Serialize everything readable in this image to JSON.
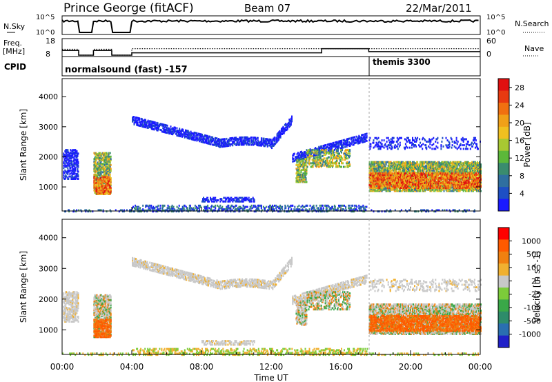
{
  "header": {
    "station": "Prince George (fitACF)",
    "beam": "Beam 07",
    "date": "22/Mar/2011"
  },
  "summary": {
    "nsky_label": "N.Sky",
    "nsky_ticks": [
      "10^5",
      "10^0"
    ],
    "nsearch_label": "N.Search",
    "nsearch_ticks": [
      "10^5",
      "10^0"
    ],
    "freq_label": "Freq.",
    "freq_unit": "[MHz]",
    "freq_ticks": [
      18,
      8
    ],
    "nave_label": "Nave",
    "nave_ticks": [
      60,
      0
    ],
    "cpid_label": "CPID",
    "cpid_segments": [
      {
        "name": "normalsound (fast) -157",
        "start_hour": 0
      },
      {
        "name": "themis 3300",
        "start_hour": 17.6
      }
    ]
  },
  "chart_data": [
    {
      "type": "heatmap",
      "name": "power-panel",
      "ylabel": "Slant Range [km]",
      "ylim": [
        200,
        4600
      ],
      "yticks": [
        1000,
        2000,
        3000,
        4000
      ],
      "xlabel": "",
      "xlim_hours": [
        0,
        24
      ],
      "colorbar": {
        "label": "Power [dB]",
        "ticks": [
          4,
          8,
          12,
          16,
          20,
          24,
          28
        ],
        "range": [
          0,
          30
        ],
        "colors": [
          "#1a1aff",
          "#1e4fc4",
          "#2f6fa0",
          "#3a8c6e",
          "#5cb83a",
          "#a8c832",
          "#f0c020",
          "#f0a018",
          "#f07010",
          "#e83a10",
          "#e01010"
        ]
      }
    },
    {
      "type": "heatmap",
      "name": "velocity-panel",
      "ylabel": "Slant Range [km]",
      "ylim": [
        200,
        4600
      ],
      "yticks": [
        1000,
        2000,
        3000,
        4000
      ],
      "xlabel": "Time UT",
      "xlim_hours": [
        0,
        24
      ],
      "xticks": [
        "00:00",
        "04:00",
        "08:00",
        "12:00",
        "16:00",
        "20:00",
        "00:00"
      ],
      "colorbar": {
        "label": "Velocity [m s^-1]",
        "ticks": [
          "1000",
          "500",
          "100",
          "25",
          "-25",
          "-100",
          "-500",
          "-1000"
        ],
        "colors": [
          "#2020c8",
          "#2a6fb0",
          "#2e8c6a",
          "#3aa848",
          "#7ccc3a",
          "#c8c8c8",
          "#f0b030",
          "#f08010",
          "#ff5a00",
          "#ff0000"
        ]
      }
    }
  ]
}
